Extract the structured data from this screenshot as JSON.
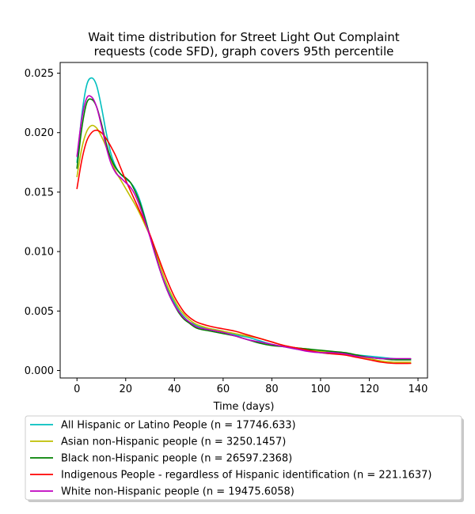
{
  "chart_data": {
    "type": "line",
    "title_lines": [
      "Wait time distribution  for Street Light Out Complaint",
      "requests (code SFD), graph covers 95th percentile"
    ],
    "xlabel": "Time (days)",
    "ylabel": "",
    "xlim": [
      -6.9,
      143.9
    ],
    "ylim": [
      -0.00063,
      0.0259
    ],
    "x_ticks": [
      0,
      20,
      40,
      60,
      80,
      100,
      120,
      140
    ],
    "x_tick_labels": [
      "0",
      "20",
      "40",
      "60",
      "80",
      "100",
      "120",
      "140"
    ],
    "y_ticks": [
      0.0,
      0.005,
      0.01,
      0.015,
      0.02,
      0.025
    ],
    "y_tick_labels": [
      "0.000",
      "0.005",
      "0.010",
      "0.015",
      "0.020",
      "0.025"
    ],
    "grid": false,
    "legend_position": "below plot",
    "series": [
      {
        "name": "All Hispanic or Latino People (n = 17746.633)",
        "color": "#00bfbf",
        "points": [
          [
            0,
            0.0175
          ],
          [
            2,
            0.0215
          ],
          [
            4,
            0.024
          ],
          [
            6,
            0.0246
          ],
          [
            8,
            0.024
          ],
          [
            10,
            0.0222
          ],
          [
            12,
            0.02
          ],
          [
            14,
            0.0182
          ],
          [
            16,
            0.0171
          ],
          [
            18,
            0.0165
          ],
          [
            20,
            0.0161
          ],
          [
            22,
            0.0158
          ],
          [
            24,
            0.0152
          ],
          [
            26,
            0.0142
          ],
          [
            28,
            0.0128
          ],
          [
            30,
            0.0113
          ],
          [
            32,
            0.0099
          ],
          [
            34,
            0.0085
          ],
          [
            36,
            0.0074
          ],
          [
            38,
            0.0065
          ],
          [
            40,
            0.0057
          ],
          [
            42,
            0.005
          ],
          [
            44,
            0.0045
          ],
          [
            46,
            0.0041
          ],
          [
            48,
            0.0039
          ],
          [
            50,
            0.0037
          ],
          [
            55,
            0.0035
          ],
          [
            60,
            0.0033
          ],
          [
            65,
            0.003
          ],
          [
            70,
            0.0028
          ],
          [
            75,
            0.0025
          ],
          [
            80,
            0.0022
          ],
          [
            85,
            0.002
          ],
          [
            90,
            0.0018
          ],
          [
            95,
            0.0017
          ],
          [
            100,
            0.0015
          ],
          [
            105,
            0.0014
          ],
          [
            110,
            0.0014
          ],
          [
            115,
            0.0013
          ],
          [
            120,
            0.0012
          ],
          [
            125,
            0.0011
          ],
          [
            130,
            0.001
          ],
          [
            137,
            0.0009
          ]
        ]
      },
      {
        "name": "Asian non-Hispanic people (n = 3250.1457)",
        "color": "#bfbf00",
        "points": [
          [
            0,
            0.0163
          ],
          [
            2,
            0.0187
          ],
          [
            4,
            0.0201
          ],
          [
            6,
            0.0206
          ],
          [
            8,
            0.0204
          ],
          [
            10,
            0.0197
          ],
          [
            12,
            0.0188
          ],
          [
            14,
            0.0177
          ],
          [
            16,
            0.0167
          ],
          [
            18,
            0.016
          ],
          [
            20,
            0.0153
          ],
          [
            22,
            0.0146
          ],
          [
            24,
            0.0139
          ],
          [
            26,
            0.0131
          ],
          [
            28,
            0.0122
          ],
          [
            30,
            0.0113
          ],
          [
            32,
            0.0101
          ],
          [
            34,
            0.0089
          ],
          [
            36,
            0.0077
          ],
          [
            38,
            0.0067
          ],
          [
            40,
            0.0059
          ],
          [
            42,
            0.0052
          ],
          [
            44,
            0.0047
          ],
          [
            46,
            0.0043
          ],
          [
            48,
            0.004
          ],
          [
            50,
            0.0038
          ],
          [
            55,
            0.0035
          ],
          [
            60,
            0.0033
          ],
          [
            65,
            0.0031
          ],
          [
            70,
            0.0029
          ],
          [
            75,
            0.0027
          ],
          [
            80,
            0.0024
          ],
          [
            85,
            0.0021
          ],
          [
            90,
            0.0019
          ],
          [
            95,
            0.0018
          ],
          [
            100,
            0.0016
          ],
          [
            105,
            0.0015
          ],
          [
            110,
            0.0014
          ],
          [
            115,
            0.0012
          ],
          [
            120,
            0.001
          ],
          [
            125,
            0.0008
          ],
          [
            130,
            0.0007
          ],
          [
            137,
            0.0007
          ]
        ]
      },
      {
        "name": "Black non-Hispanic people (n = 26597.2368)",
        "color": "#008000",
        "points": [
          [
            0,
            0.017
          ],
          [
            2,
            0.0204
          ],
          [
            4,
            0.0225
          ],
          [
            6,
            0.0228
          ],
          [
            8,
            0.0222
          ],
          [
            10,
            0.0208
          ],
          [
            12,
            0.0191
          ],
          [
            14,
            0.0178
          ],
          [
            16,
            0.017
          ],
          [
            18,
            0.0165
          ],
          [
            20,
            0.0162
          ],
          [
            22,
            0.0158
          ],
          [
            24,
            0.015
          ],
          [
            26,
            0.014
          ],
          [
            28,
            0.0127
          ],
          [
            30,
            0.0113
          ],
          [
            32,
            0.0099
          ],
          [
            34,
            0.0085
          ],
          [
            36,
            0.0073
          ],
          [
            38,
            0.0063
          ],
          [
            40,
            0.0055
          ],
          [
            42,
            0.0048
          ],
          [
            44,
            0.0043
          ],
          [
            46,
            0.004
          ],
          [
            48,
            0.0037
          ],
          [
            50,
            0.0035
          ],
          [
            55,
            0.0033
          ],
          [
            60,
            0.0031
          ],
          [
            65,
            0.0029
          ],
          [
            70,
            0.0026
          ],
          [
            75,
            0.0023
          ],
          [
            80,
            0.0021
          ],
          [
            85,
            0.002
          ],
          [
            90,
            0.0019
          ],
          [
            95,
            0.0018
          ],
          [
            100,
            0.0017
          ],
          [
            105,
            0.0016
          ],
          [
            110,
            0.0015
          ],
          [
            115,
            0.0013
          ],
          [
            120,
            0.0011
          ],
          [
            125,
            0.001
          ],
          [
            130,
            0.0009
          ],
          [
            137,
            0.0009
          ]
        ]
      },
      {
        "name": "Indigenous People - regardless of Hispanic identification (n = 221.1637)",
        "color": "#ff0000",
        "points": [
          [
            0,
            0.0153
          ],
          [
            2,
            0.0177
          ],
          [
            4,
            0.0193
          ],
          [
            6,
            0.02
          ],
          [
            8,
            0.0202
          ],
          [
            10,
            0.02
          ],
          [
            12,
            0.0195
          ],
          [
            14,
            0.0188
          ],
          [
            16,
            0.018
          ],
          [
            18,
            0.017
          ],
          [
            20,
            0.016
          ],
          [
            22,
            0.0151
          ],
          [
            24,
            0.0142
          ],
          [
            26,
            0.0133
          ],
          [
            28,
            0.0124
          ],
          [
            30,
            0.0114
          ],
          [
            32,
            0.0103
          ],
          [
            34,
            0.0092
          ],
          [
            36,
            0.0081
          ],
          [
            38,
            0.0071
          ],
          [
            40,
            0.0062
          ],
          [
            42,
            0.0055
          ],
          [
            44,
            0.0049
          ],
          [
            46,
            0.0045
          ],
          [
            48,
            0.0042
          ],
          [
            50,
            0.004
          ],
          [
            55,
            0.0037
          ],
          [
            60,
            0.0035
          ],
          [
            65,
            0.0033
          ],
          [
            70,
            0.003
          ],
          [
            75,
            0.0027
          ],
          [
            80,
            0.0024
          ],
          [
            85,
            0.0021
          ],
          [
            90,
            0.0019
          ],
          [
            95,
            0.0017
          ],
          [
            100,
            0.0015
          ],
          [
            105,
            0.0014
          ],
          [
            110,
            0.0013
          ],
          [
            115,
            0.0011
          ],
          [
            120,
            0.0009
          ],
          [
            125,
            0.0007
          ],
          [
            130,
            0.0006
          ],
          [
            137,
            0.0006
          ]
        ]
      },
      {
        "name": "White non-Hispanic people (n = 19475.6058)",
        "color": "#bf00bf",
        "points": [
          [
            0,
            0.018
          ],
          [
            2,
            0.0212
          ],
          [
            4,
            0.0229
          ],
          [
            6,
            0.023
          ],
          [
            8,
            0.0222
          ],
          [
            10,
            0.0206
          ],
          [
            12,
            0.0188
          ],
          [
            14,
            0.0174
          ],
          [
            16,
            0.0166
          ],
          [
            18,
            0.0162
          ],
          [
            20,
            0.0158
          ],
          [
            22,
            0.0154
          ],
          [
            24,
            0.0147
          ],
          [
            26,
            0.0137
          ],
          [
            28,
            0.0125
          ],
          [
            30,
            0.0112
          ],
          [
            32,
            0.0098
          ],
          [
            34,
            0.0085
          ],
          [
            36,
            0.0073
          ],
          [
            38,
            0.0063
          ],
          [
            40,
            0.0055
          ],
          [
            42,
            0.0049
          ],
          [
            44,
            0.0044
          ],
          [
            46,
            0.0041
          ],
          [
            48,
            0.0038
          ],
          [
            50,
            0.0036
          ],
          [
            55,
            0.0034
          ],
          [
            60,
            0.0032
          ],
          [
            65,
            0.0029
          ],
          [
            70,
            0.0026
          ],
          [
            75,
            0.0024
          ],
          [
            80,
            0.0022
          ],
          [
            85,
            0.002
          ],
          [
            90,
            0.0018
          ],
          [
            95,
            0.0016
          ],
          [
            100,
            0.0015
          ],
          [
            105,
            0.0015
          ],
          [
            110,
            0.0014
          ],
          [
            115,
            0.0012
          ],
          [
            120,
            0.0011
          ],
          [
            125,
            0.001
          ],
          [
            130,
            0.001
          ],
          [
            137,
            0.001
          ]
        ]
      }
    ]
  }
}
